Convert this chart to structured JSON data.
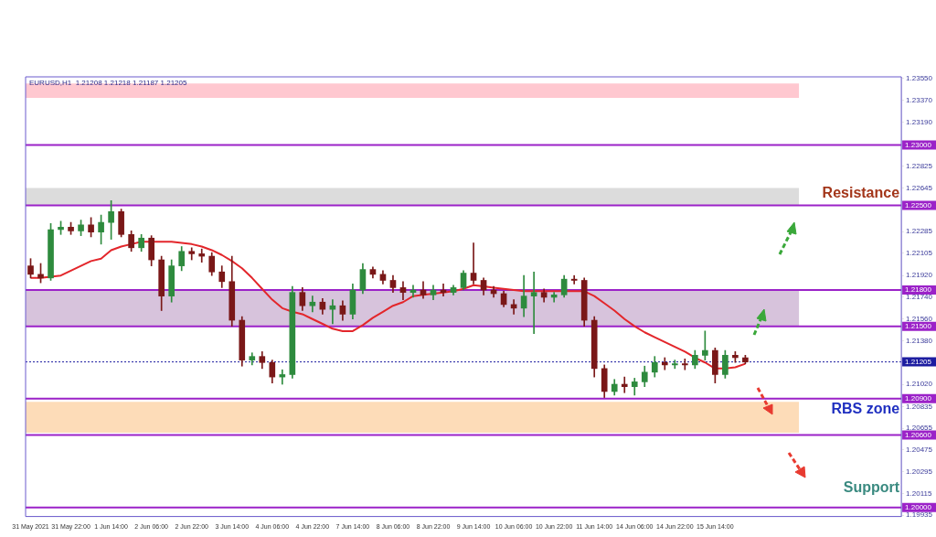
{
  "chart_data": {
    "type": "candlestick",
    "categories": [
      "31 May 2021",
      null,
      null,
      null,
      "31 May 22:00",
      null,
      null,
      null,
      "1 Jun 14:00",
      null,
      null,
      null,
      "2 Jun 06:00",
      null,
      null,
      null,
      "2 Jun 22:00",
      null,
      null,
      null,
      "3 Jun 14:00",
      null,
      null,
      null,
      "4 Jun 06:00",
      null,
      null,
      null,
      "4 Jun 22:00",
      null,
      null,
      null,
      "7 Jun 14:00",
      null,
      null,
      null,
      "8 Jun 06:00",
      null,
      null,
      null,
      "8 Jun 22:00",
      null,
      null,
      null,
      "9 Jun 14:00",
      null,
      null,
      null,
      "10 Jun 06:00",
      null,
      null,
      null,
      "10 Jun 22:00",
      null,
      null,
      null,
      "11 Jun 14:00",
      null,
      null,
      null,
      "14 Jun 06:00",
      null,
      null,
      null,
      "14 Jun 22:00",
      null,
      null,
      null,
      "15 Jun 14:00",
      null,
      null,
      null,
      null,
      null,
      null,
      null,
      null,
      null,
      null,
      null,
      null,
      null,
      null,
      null,
      null,
      null,
      null
    ],
    "ohlc": [
      [
        1.22,
        1.2206,
        1.219,
        1.2193
      ],
      [
        1.2193,
        1.2202,
        1.2186,
        1.219
      ],
      [
        1.219,
        1.2235,
        1.2188,
        1.223
      ],
      [
        1.223,
        1.2237,
        1.2226,
        1.2232
      ],
      [
        1.2232,
        1.2236,
        1.2226,
        1.2229
      ],
      [
        1.2229,
        1.2238,
        1.2225,
        1.2234
      ],
      [
        1.2234,
        1.224,
        1.2224,
        1.2228
      ],
      [
        1.2228,
        1.2242,
        1.2218,
        1.2236
      ],
      [
        1.2236,
        1.2254,
        1.2222,
        1.2245
      ],
      [
        1.2245,
        1.2247,
        1.2224,
        1.2226
      ],
      [
        1.2226,
        1.2229,
        1.2212,
        1.2215
      ],
      [
        1.2215,
        1.2226,
        1.2212,
        1.2223
      ],
      [
        1.2223,
        1.2225,
        1.22,
        1.2205
      ],
      [
        1.2205,
        1.2208,
        1.2163,
        1.2175
      ],
      [
        1.2175,
        1.2205,
        1.217,
        1.22
      ],
      [
        1.22,
        1.2216,
        1.2196,
        1.2212
      ],
      [
        1.2212,
        1.2215,
        1.2205,
        1.221
      ],
      [
        1.221,
        1.2214,
        1.2203,
        1.2208
      ],
      [
        1.2208,
        1.2211,
        1.2192,
        1.2195
      ],
      [
        1.2195,
        1.22,
        1.2182,
        1.2187
      ],
      [
        1.2187,
        1.2208,
        1.215,
        1.2155
      ],
      [
        1.2155,
        1.2158,
        1.2117,
        1.2122
      ],
      [
        1.2122,
        1.2128,
        1.2118,
        1.2125
      ],
      [
        1.2125,
        1.2129,
        1.2115,
        1.212
      ],
      [
        1.212,
        1.2122,
        1.2103,
        1.2108
      ],
      [
        1.2108,
        1.2114,
        1.2102,
        1.211
      ],
      [
        1.211,
        1.2183,
        1.2107,
        1.2178
      ],
      [
        1.2178,
        1.2182,
        1.2163,
        1.2167
      ],
      [
        1.2167,
        1.2175,
        1.2162,
        1.217
      ],
      [
        1.217,
        1.2173,
        1.216,
        1.2164
      ],
      [
        1.2164,
        1.2172,
        1.2152,
        1.2167
      ],
      [
        1.2167,
        1.2171,
        1.2155,
        1.216
      ],
      [
        1.216,
        1.2185,
        1.2156,
        1.218
      ],
      [
        1.218,
        1.2202,
        1.2177,
        1.2197
      ],
      [
        1.2197,
        1.2199,
        1.219,
        1.2193
      ],
      [
        1.2193,
        1.2196,
        1.2185,
        1.2188
      ],
      [
        1.2188,
        1.2192,
        1.2178,
        1.2182
      ],
      [
        1.2182,
        1.2187,
        1.2172,
        1.2178
      ],
      [
        1.2178,
        1.2184,
        1.2174,
        1.218
      ],
      [
        1.218,
        1.2187,
        1.2173,
        1.2176
      ],
      [
        1.2176,
        1.2184,
        1.2172,
        1.218
      ],
      [
        1.218,
        1.2185,
        1.2175,
        1.2178
      ],
      [
        1.2178,
        1.2184,
        1.2176,
        1.2182
      ],
      [
        1.2182,
        1.2196,
        1.218,
        1.2194
      ],
      [
        1.2194,
        1.2219,
        1.2185,
        1.2188
      ],
      [
        1.2188,
        1.219,
        1.2176,
        1.218
      ],
      [
        1.218,
        1.2183,
        1.2174,
        1.2177
      ],
      [
        1.2177,
        1.2179,
        1.2166,
        1.2168
      ],
      [
        1.2168,
        1.2172,
        1.216,
        1.2165
      ],
      [
        1.2165,
        1.2192,
        1.2158,
        1.2175
      ],
      [
        1.2175,
        1.2195,
        1.2144,
        1.2178
      ],
      [
        1.2178,
        1.2181,
        1.217,
        1.2174
      ],
      [
        1.2174,
        1.2178,
        1.217,
        1.2176
      ],
      [
        1.2176,
        1.2192,
        1.2174,
        1.2189
      ],
      [
        1.2189,
        1.2192,
        1.2185,
        1.2188
      ],
      [
        1.2188,
        1.219,
        1.215,
        1.2155
      ],
      [
        1.2155,
        1.2158,
        1.2108,
        1.2115
      ],
      [
        1.2115,
        1.2118,
        1.2091,
        1.2096
      ],
      [
        1.2096,
        1.2106,
        1.2093,
        1.2102
      ],
      [
        1.2102,
        1.2108,
        1.2095,
        1.21
      ],
      [
        1.21,
        1.2107,
        1.2093,
        1.2104
      ],
      [
        1.2104,
        1.2117,
        1.21,
        1.2112
      ],
      [
        1.2112,
        1.2125,
        1.2108,
        1.212
      ],
      [
        1.212,
        1.2124,
        1.2114,
        1.2118
      ],
      [
        1.2118,
        1.2122,
        1.2115,
        1.2119
      ],
      [
        1.2119,
        1.2123,
        1.2114,
        1.2118
      ],
      [
        1.2118,
        1.213,
        1.2115,
        1.2126
      ],
      [
        1.2126,
        1.2146,
        1.2122,
        1.213
      ],
      [
        1.213,
        1.2132,
        1.2103,
        1.211
      ],
      [
        1.211,
        1.213,
        1.2107,
        1.2126
      ],
      [
        1.2126,
        1.2129,
        1.212,
        1.2124
      ],
      [
        1.2124,
        1.2126,
        1.2119,
        1.21205
      ],
      null,
      null,
      null,
      null,
      null,
      null,
      null,
      null,
      null,
      null,
      null,
      null,
      null,
      null,
      null
    ],
    "series": [
      {
        "type": "line",
        "color": "#e3262b",
        "values": [
          1.219,
          1.219,
          1.2191,
          1.2192,
          1.2196,
          1.22,
          1.2204,
          1.2206,
          1.2213,
          1.2216,
          1.2218,
          1.222,
          1.222,
          1.222,
          1.222,
          1.2219,
          1.2218,
          1.2216,
          1.2213,
          1.2209,
          1.2204,
          1.2198,
          1.219,
          1.2181,
          1.2172,
          1.2165,
          1.2162,
          1.216,
          1.2156,
          1.2152,
          1.2148,
          1.2146,
          1.2146,
          1.2151,
          1.2157,
          1.2162,
          1.2167,
          1.217,
          1.2175,
          1.2176,
          1.2177,
          1.2178,
          1.2179,
          1.2181,
          1.2184,
          1.2183,
          1.2182,
          1.2181,
          1.218,
          1.2179,
          1.2179,
          1.2179,
          1.2179,
          1.2179,
          1.2179,
          1.2179,
          1.2175,
          1.2169,
          1.2163,
          1.2156,
          1.215,
          1.2145,
          1.2141,
          1.2137,
          1.2133,
          1.2129,
          1.2124,
          1.212,
          1.2115,
          1.2115,
          1.2116,
          1.2119,
          null,
          null,
          null,
          null,
          null,
          null,
          null,
          null,
          null,
          null,
          null,
          null,
          null,
          null,
          null
        ]
      }
    ],
    "ylim": [
      1.19925,
      1.23565
    ],
    "yticks": [
      {
        "value": 1.2355,
        "label": "1.23550"
      },
      {
        "value": 1.2337,
        "label": "1.23370"
      },
      {
        "value": 1.2319,
        "label": "1.23190"
      },
      {
        "value": 1.22825,
        "label": "1.22825"
      },
      {
        "value": 1.22645,
        "label": "1.22645"
      },
      {
        "value": 1.22285,
        "label": "1.22285"
      },
      {
        "value": 1.22105,
        "label": "1.22105"
      },
      {
        "value": 1.2192,
        "label": "1.21920"
      },
      {
        "value": 1.2174,
        "label": "1.21740"
      },
      {
        "value": 1.2156,
        "label": "1.21560"
      },
      {
        "value": 1.2138,
        "label": "1.21380"
      },
      {
        "value": 1.2102,
        "label": "1.21020"
      },
      {
        "value": 1.20835,
        "label": "1.20835"
      },
      {
        "value": 1.20655,
        "label": "1.20655"
      },
      {
        "value": 1.20475,
        "label": "1.20475"
      },
      {
        "value": 1.20295,
        "label": "1.20295"
      },
      {
        "value": 1.20115,
        "label": "1.20115"
      },
      {
        "value": 1.19935,
        "label": "1.19935"
      }
    ],
    "bands": [
      {
        "axis": "y",
        "from": 1.2339,
        "to": 1.2351,
        "color": "#ffc8d0"
      },
      {
        "axis": "y",
        "from": 1.225,
        "to": 1.22645,
        "color": "#dcdcdc"
      },
      {
        "axis": "y",
        "from": 1.215,
        "to": 1.218,
        "color": "#d7c3dc"
      },
      {
        "axis": "y",
        "from": 1.20618,
        "to": 1.20874,
        "color": "#fddcb8"
      }
    ],
    "ref_lines": [
      {
        "axis": "y",
        "value": 1.23,
        "label": "1.23000",
        "color": "#9b22c8"
      },
      {
        "axis": "y",
        "value": 1.225,
        "label": "1.22500",
        "color": "#9b22c8"
      },
      {
        "axis": "y",
        "value": 1.218,
        "label": "1.21800",
        "color": "#9b22c8"
      },
      {
        "axis": "y",
        "value": 1.215,
        "label": "1.21500",
        "color": "#9b22c8"
      },
      {
        "axis": "y",
        "value": 1.21205,
        "label": "1.21205",
        "color": "#1c1ca0",
        "line_style": "dotted"
      },
      {
        "axis": "y",
        "value": 1.209,
        "label": "1.20900",
        "color": "#9b22c8"
      },
      {
        "axis": "y",
        "value": 1.206,
        "label": "1.20600",
        "color": "#9b22c8"
      },
      {
        "axis": "y",
        "value": 1.2,
        "label": "1.20000",
        "color": "#9b22c8"
      }
    ],
    "annotations": [
      "EURUSD,H1  1.21208 1.21218 1.21187 1.21205",
      "Resistance",
      "RBS zone",
      "Support"
    ],
    "grid": false,
    "legend": false
  }
}
